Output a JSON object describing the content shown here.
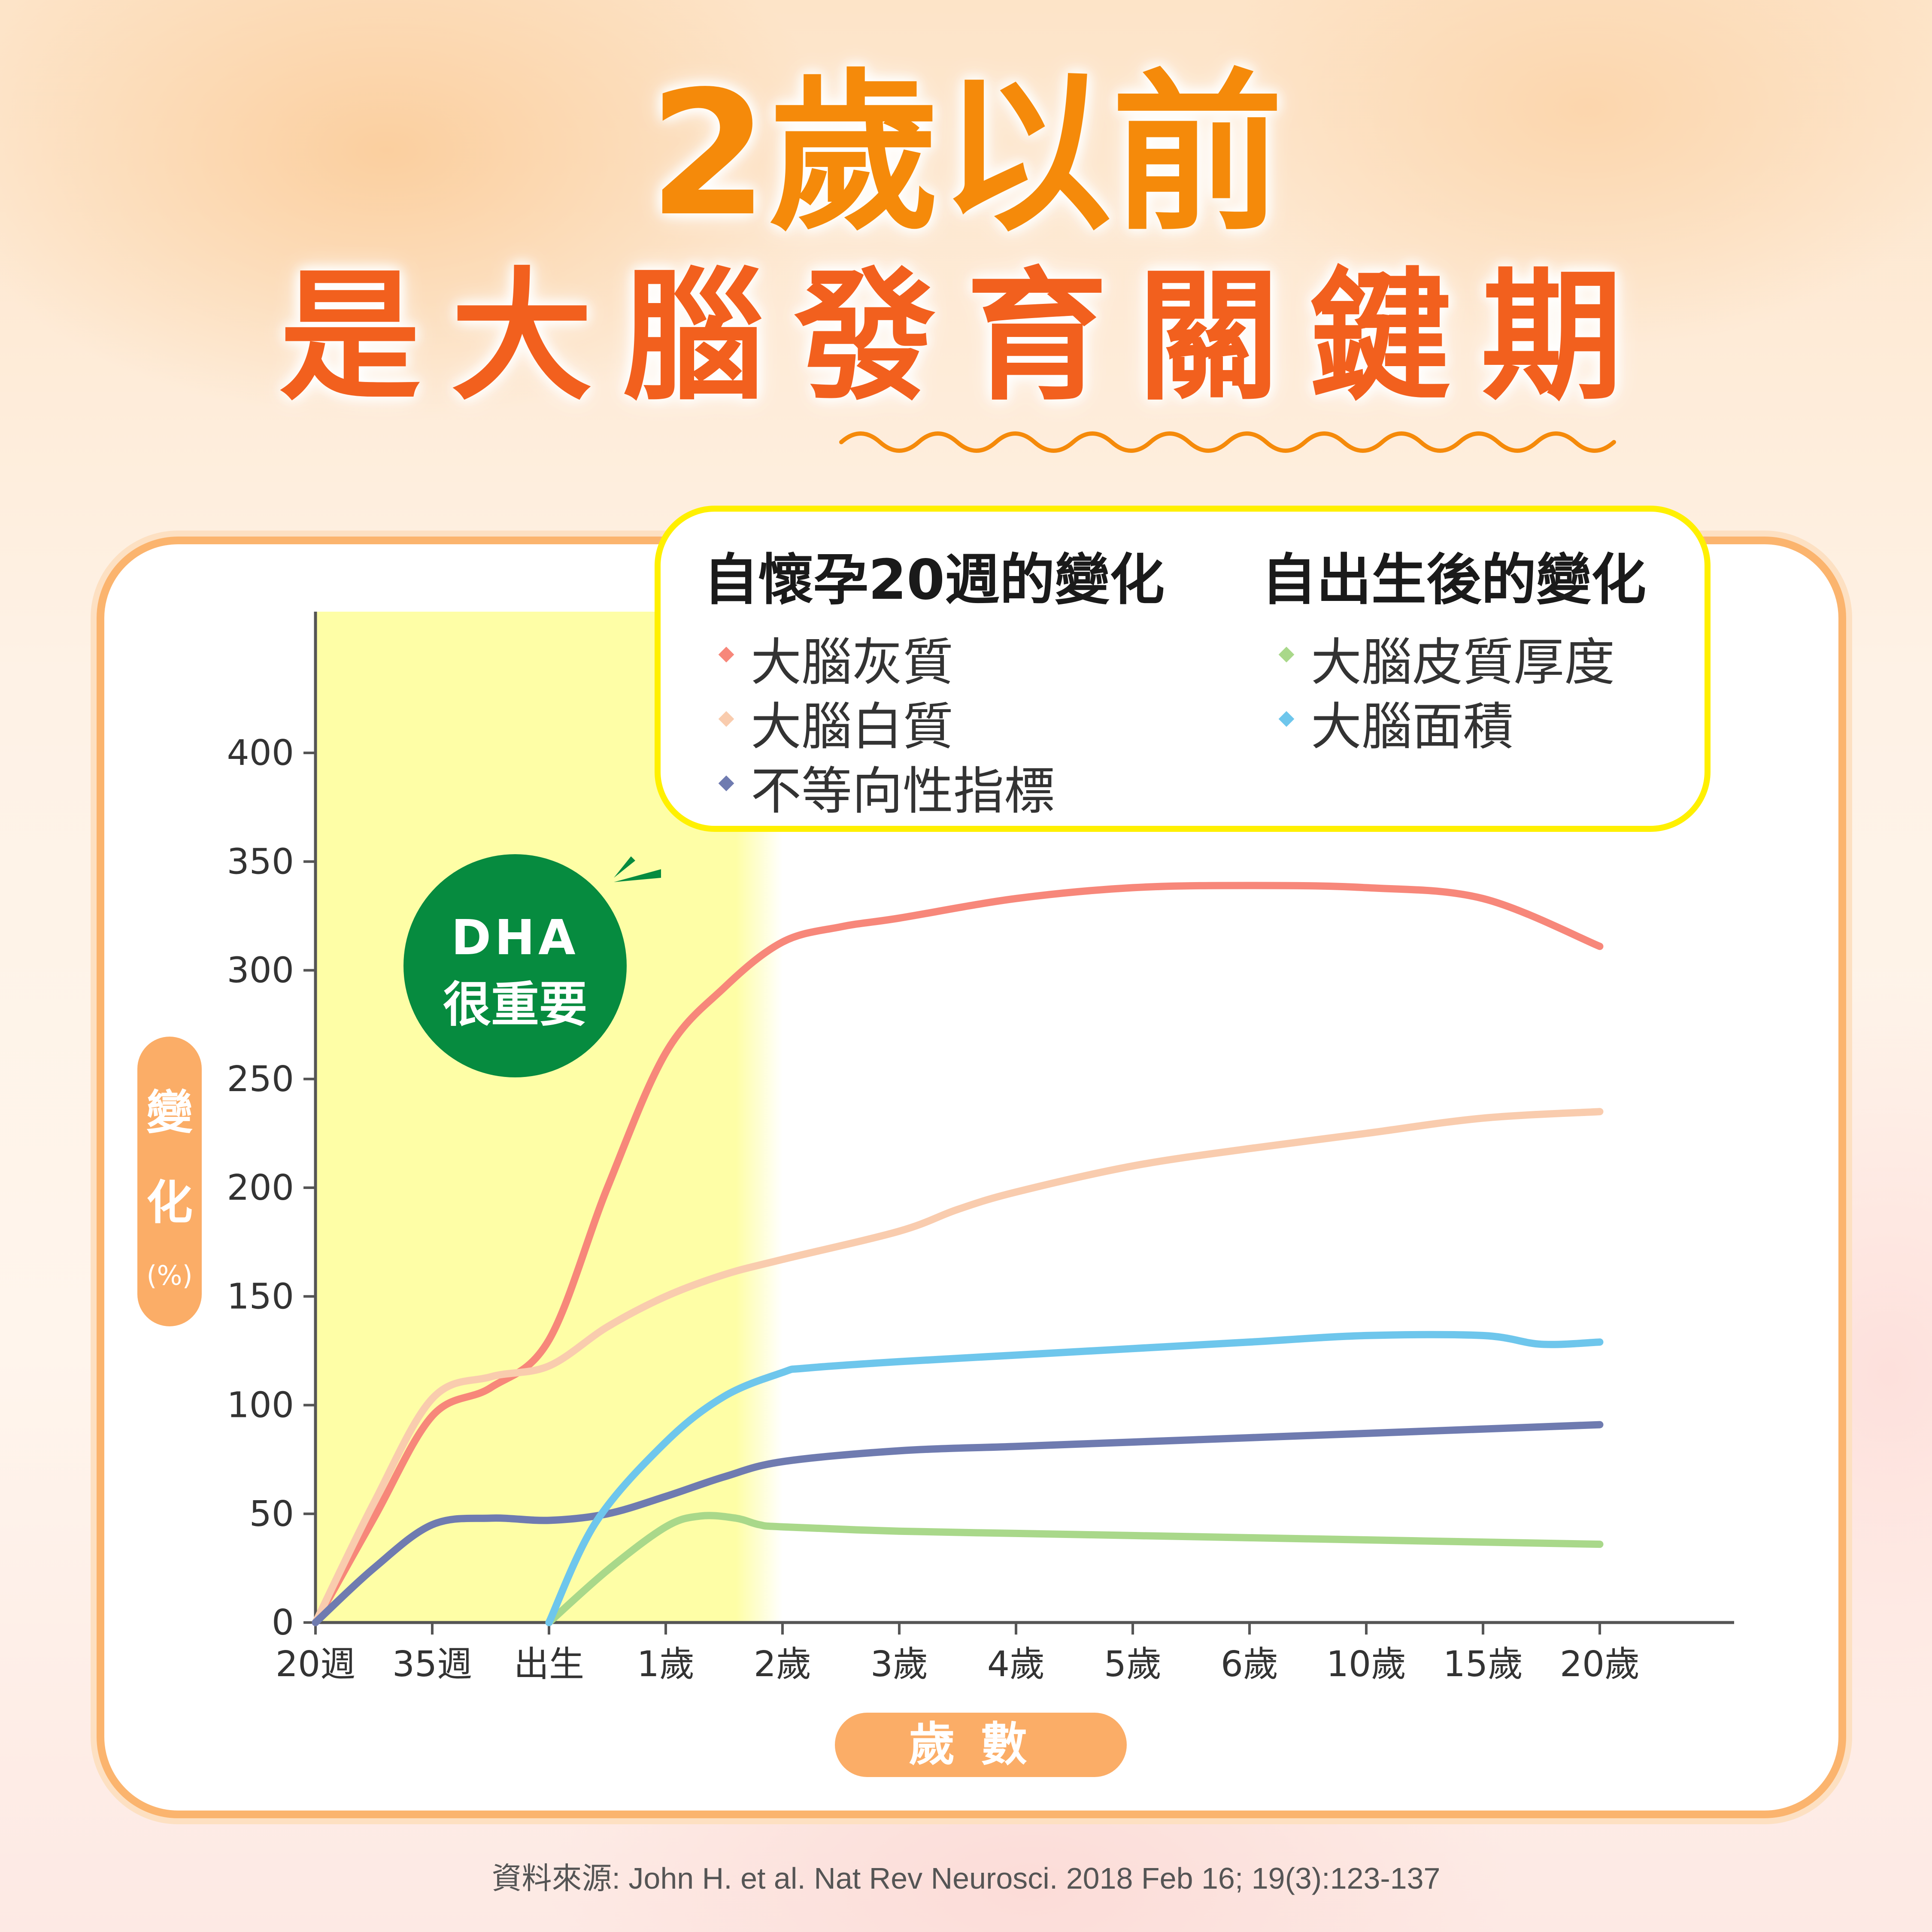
{
  "title": {
    "line1": "2歲以前",
    "line2": "是大腦發育關鍵期"
  },
  "legend": {
    "group1_title": "自懷孕20週的變化",
    "group2_title": "自出生後的變化",
    "group1_items": [
      {
        "label": "大腦灰質",
        "color": "#f7877a"
      },
      {
        "label": "大腦白質",
        "color": "#f9ccae"
      },
      {
        "label": "不等向性指標",
        "color": "#6f7bb0"
      }
    ],
    "group2_items": [
      {
        "label": "大腦皮質厚度",
        "color": "#a9d88a"
      },
      {
        "label": "大腦面積",
        "color": "#6ec6ec"
      }
    ]
  },
  "dha_badge": {
    "line1": "DHA",
    "line2": "很重要"
  },
  "y_axis": {
    "label_chars": [
      "變",
      "化"
    ],
    "unit": "(%)"
  },
  "x_axis": {
    "label": "歲數"
  },
  "source": "資料來源: John H. et al. Nat Rev Neurosci. 2018 Feb 16; 19(3):123-137",
  "colors": {
    "highlight": "#fefea6",
    "axis": "#555555",
    "accent_orange": "#fbad67"
  },
  "chart_data": {
    "type": "line",
    "categories": [
      "20週",
      "35週",
      "出生",
      "1歲",
      "2歲",
      "3歲",
      "4歲",
      "5歲",
      "6歲",
      "10歲",
      "15歲",
      "20歲"
    ],
    "y_ticks": [
      0,
      50,
      100,
      150,
      200,
      250,
      300,
      350,
      400
    ],
    "ylim": [
      0,
      450
    ],
    "highlight_range": [
      "20週",
      "2歲"
    ],
    "series": [
      {
        "name": "大腦灰質",
        "color": "#f7877a",
        "points": [
          [
            0,
            0
          ],
          [
            0.5,
            48
          ],
          [
            1,
            95
          ],
          [
            1.5,
            108
          ],
          [
            2,
            130
          ],
          [
            2.5,
            200
          ],
          [
            3,
            262
          ],
          [
            3.5,
            292
          ],
          [
            4,
            313
          ],
          [
            4.5,
            320
          ],
          [
            5,
            324
          ],
          [
            6,
            333
          ],
          [
            7,
            338
          ],
          [
            8,
            339
          ],
          [
            9,
            338
          ],
          [
            10,
            333
          ],
          [
            11,
            311
          ]
        ]
      },
      {
        "name": "大腦白質",
        "color": "#f9ccae",
        "points": [
          [
            0,
            0
          ],
          [
            0.5,
            55
          ],
          [
            1,
            103
          ],
          [
            1.5,
            113
          ],
          [
            2,
            118
          ],
          [
            2.5,
            136
          ],
          [
            3,
            150
          ],
          [
            3.5,
            160
          ],
          [
            4,
            167
          ],
          [
            5,
            180
          ],
          [
            5.5,
            190
          ],
          [
            6,
            198
          ],
          [
            7,
            210
          ],
          [
            8,
            218
          ],
          [
            9,
            225
          ],
          [
            10,
            232
          ],
          [
            11,
            235
          ]
        ]
      },
      {
        "name": "不等向性指標",
        "color": "#6f7bb0",
        "points": [
          [
            0,
            0
          ],
          [
            0.5,
            25
          ],
          [
            1,
            45
          ],
          [
            1.5,
            48
          ],
          [
            2,
            47
          ],
          [
            2.5,
            50
          ],
          [
            3,
            58
          ],
          [
            3.5,
            67
          ],
          [
            4,
            74
          ],
          [
            5,
            79
          ],
          [
            6,
            81
          ],
          [
            7,
            83
          ],
          [
            8,
            85
          ],
          [
            9,
            87
          ],
          [
            10,
            89
          ],
          [
            11,
            91
          ]
        ]
      },
      {
        "name": "大腦皮質厚度",
        "color": "#a9d88a",
        "points": [
          [
            2,
            0
          ],
          [
            2.5,
            24
          ],
          [
            3,
            44
          ],
          [
            3.3,
            49
          ],
          [
            3.6,
            48
          ],
          [
            3.8,
            45
          ],
          [
            4,
            44
          ],
          [
            5,
            42
          ],
          [
            6,
            41
          ],
          [
            7,
            40
          ],
          [
            8,
            39
          ],
          [
            9,
            38
          ],
          [
            10,
            37
          ],
          [
            11,
            36
          ]
        ]
      },
      {
        "name": "大腦面積",
        "color": "#6ec6ec",
        "points": [
          [
            2,
            0
          ],
          [
            2.4,
            46
          ],
          [
            3,
            83
          ],
          [
            3.5,
            104
          ],
          [
            4,
            115
          ],
          [
            4.2,
            117
          ],
          [
            5,
            120
          ],
          [
            6,
            123
          ],
          [
            7,
            126
          ],
          [
            8,
            129
          ],
          [
            9,
            132
          ],
          [
            10,
            132
          ],
          [
            10.5,
            128
          ],
          [
            11,
            129
          ]
        ]
      }
    ]
  }
}
